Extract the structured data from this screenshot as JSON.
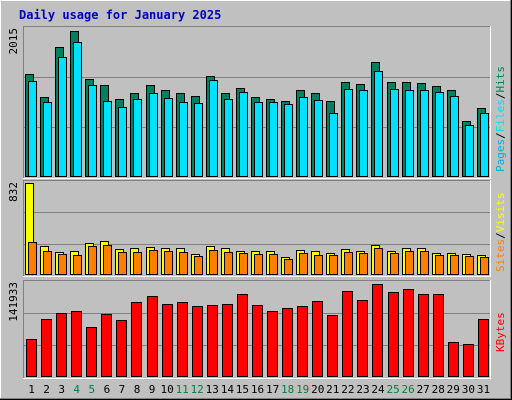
{
  "title": "Daily usage for January 2025",
  "colors": {
    "background": "#c0c0c0",
    "title": "#0000c0",
    "hits": "#008060",
    "files": "#00e0ff",
    "pages": "#00b0e0",
    "visits": "#ffff00",
    "sites": "#ff8000",
    "kbytes": "#ff0000",
    "weekend_day": "#008040",
    "weekday_day": "#000000"
  },
  "chart_data": [
    {
      "type": "bar",
      "title": "Daily usage for January 2025",
      "categories": [
        "1",
        "2",
        "3",
        "4",
        "5",
        "6",
        "7",
        "8",
        "9",
        "10",
        "11",
        "12",
        "13",
        "14",
        "15",
        "16",
        "17",
        "18",
        "19",
        "20",
        "21",
        "22",
        "23",
        "24",
        "25",
        "26",
        "27",
        "28",
        "29",
        "30",
        "31"
      ],
      "weekend_days": [
        "4",
        "5",
        "11",
        "12",
        "18",
        "19",
        "25",
        "26"
      ],
      "max_label": "2015",
      "ylim": [
        0,
        2015
      ],
      "legend": [
        {
          "label": "Pages",
          "color": "#00b0e0"
        },
        {
          "label": "/",
          "color": "#000000"
        },
        {
          "label": "Files",
          "color": "#00e0ff"
        },
        {
          "label": "/",
          "color": "#000000"
        },
        {
          "label": "Hits",
          "color": "#008060"
        }
      ],
      "series": [
        {
          "name": "Hits",
          "color": "#008060",
          "values": [
            1390,
            1080,
            1760,
            1980,
            1330,
            1250,
            1060,
            1140,
            1240,
            1180,
            1140,
            1090,
            1360,
            1130,
            1200,
            1080,
            1060,
            1030,
            1170,
            1140,
            1030,
            1290,
            1260,
            1560,
            1280,
            1280,
            1270,
            1230,
            1170,
            760,
            930
          ]
        },
        {
          "name": "Files",
          "color": "#00e0ff",
          "values": [
            1300,
            1010,
            1620,
            1830,
            1240,
            1030,
            950,
            1060,
            1140,
            1070,
            1020,
            1000,
            1310,
            1060,
            1150,
            1020,
            1020,
            990,
            1080,
            1040,
            860,
            1190,
            1180,
            1440,
            1190,
            1180,
            1180,
            1150,
            1090,
            700,
            860
          ]
        }
      ]
    },
    {
      "type": "bar",
      "max_label": "832",
      "ylim": [
        0,
        832
      ],
      "legend": [
        {
          "label": "Sites",
          "color": "#ff8000"
        },
        {
          "label": "/",
          "color": "#000000"
        },
        {
          "label": "Visits",
          "color": "#ffff00"
        }
      ],
      "series": [
        {
          "name": "Visits",
          "color": "#ffff00",
          "values": [
            832,
            260,
            210,
            215,
            290,
            310,
            235,
            240,
            250,
            245,
            245,
            190,
            260,
            240,
            220,
            215,
            220,
            160,
            225,
            215,
            200,
            235,
            220,
            270,
            215,
            240,
            240,
            200,
            200,
            190,
            180
          ]
        },
        {
          "name": "Sites",
          "color": "#ff8000",
          "values": [
            300,
            215,
            190,
            185,
            260,
            275,
            210,
            205,
            225,
            215,
            210,
            170,
            230,
            205,
            195,
            190,
            190,
            145,
            200,
            185,
            185,
            210,
            200,
            245,
            200,
            215,
            215,
            185,
            180,
            175,
            165
          ]
        }
      ]
    },
    {
      "type": "bar",
      "max_label": "141933",
      "ylim": [
        0,
        141933
      ],
      "legend": [
        {
          "label": "KBytes",
          "color": "#ff0000"
        }
      ],
      "series": [
        {
          "name": "KBytes",
          "color": "#ff0000",
          "values": [
            58000,
            89000,
            98000,
            100000,
            76000,
            96000,
            87000,
            114000,
            123000,
            111000,
            114000,
            109000,
            110000,
            111000,
            127000,
            110000,
            100000,
            106000,
            108000,
            116000,
            94000,
            131000,
            117000,
            141933,
            129000,
            135000,
            127000,
            127000,
            53000,
            51000,
            89000
          ]
        }
      ]
    }
  ]
}
